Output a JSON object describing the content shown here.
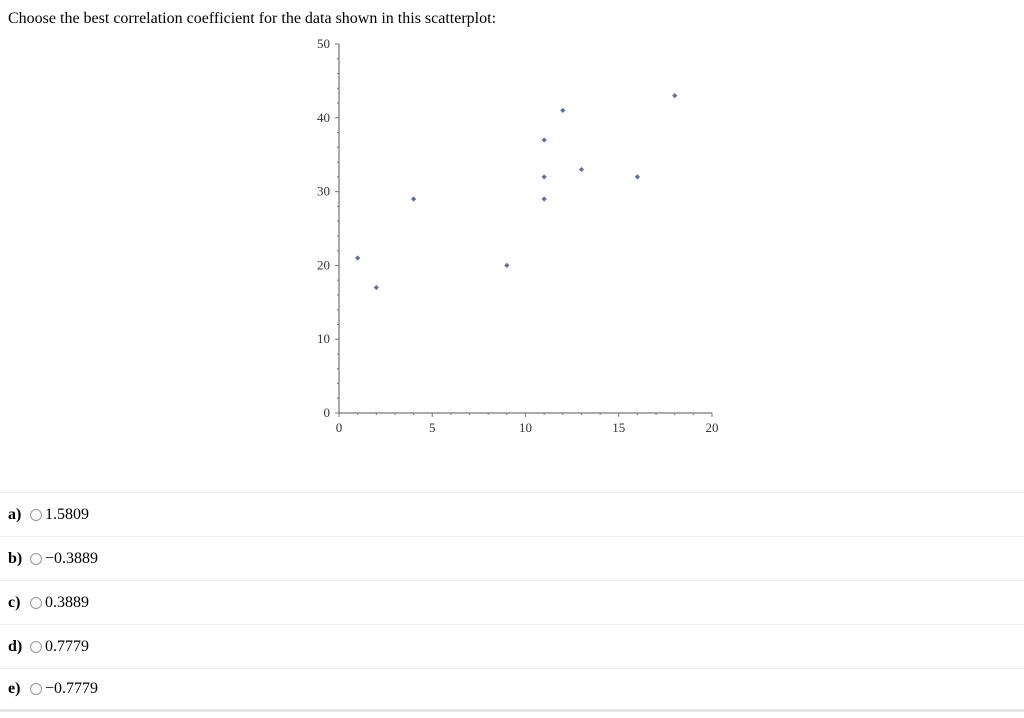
{
  "question": {
    "text": "Choose the best correlation coefficient for the data shown in this scatterplot:"
  },
  "chart_data": {
    "type": "scatter",
    "title": "",
    "xlabel": "",
    "ylabel": "",
    "xlim": [
      0,
      20
    ],
    "ylim": [
      0,
      50
    ],
    "x_ticks": [
      "0",
      "5",
      "10",
      "15",
      "20"
    ],
    "y_ticks": [
      "0",
      "10",
      "20",
      "30",
      "40",
      "50"
    ],
    "grid": false,
    "marker_color": "#5b6cb0",
    "points": [
      {
        "x": 1,
        "y": 21
      },
      {
        "x": 2,
        "y": 17
      },
      {
        "x": 4,
        "y": 29
      },
      {
        "x": 9,
        "y": 20
      },
      {
        "x": 11,
        "y": 37
      },
      {
        "x": 11,
        "y": 32
      },
      {
        "x": 11,
        "y": 29
      },
      {
        "x": 12,
        "y": 41
      },
      {
        "x": 13,
        "y": 33
      },
      {
        "x": 16,
        "y": 32
      },
      {
        "x": 18,
        "y": 43
      }
    ]
  },
  "answers": [
    {
      "letter": "a)",
      "value": "1.5809"
    },
    {
      "letter": "b)",
      "value": "−0.3889"
    },
    {
      "letter": "c)",
      "value": "0.3889"
    },
    {
      "letter": "d)",
      "value": "0.7779"
    },
    {
      "letter": "e)",
      "value": "−0.7779"
    }
  ]
}
